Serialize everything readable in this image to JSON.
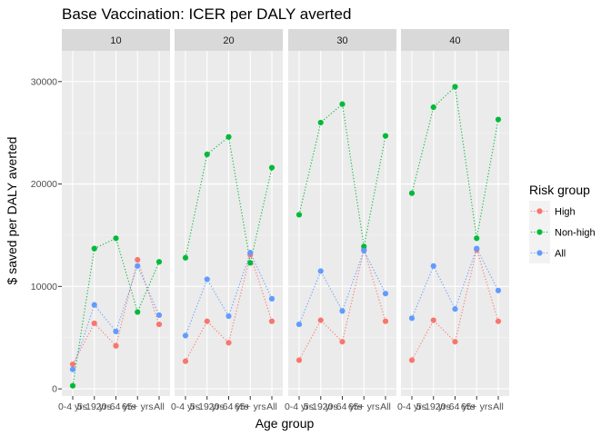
{
  "chart_data": {
    "type": "line",
    "title": "Base Vaccination: ICER per DALY averted",
    "xlabel": "Age group",
    "ylabel": "$ saved per DALY averted",
    "categories": [
      "0-4 yrs",
      "5-19 yrs",
      "20-64 yrs",
      "65+ yrs",
      "All"
    ],
    "yticks": [
      0,
      10000,
      20000,
      30000
    ],
    "ylim": [
      -700,
      33000
    ],
    "grid": true,
    "legend": {
      "title": "Risk group",
      "placement": "right",
      "entries": [
        "High",
        "Non-high",
        "All"
      ]
    },
    "colors": {
      "High": "#F8766D",
      "Non-high": "#00BA38",
      "All": "#619CFF"
    },
    "facets": [
      {
        "label": "10",
        "series": [
          {
            "name": "High",
            "values": [
              2400,
              6400,
              4200,
              12600,
              6300
            ]
          },
          {
            "name": "Non-high",
            "values": [
              300,
              13700,
              14700,
              7500,
              12400
            ]
          },
          {
            "name": "All",
            "values": [
              1900,
              8200,
              5600,
              12000,
              7200
            ]
          }
        ]
      },
      {
        "label": "20",
        "series": [
          {
            "name": "High",
            "values": [
              2700,
              6600,
              4500,
              13100,
              6600
            ]
          },
          {
            "name": "Non-high",
            "values": [
              12800,
              22900,
              24600,
              12300,
              21600
            ]
          },
          {
            "name": "All",
            "values": [
              5200,
              10700,
              7100,
              13300,
              8800
            ]
          }
        ]
      },
      {
        "label": "30",
        "series": [
          {
            "name": "High",
            "values": [
              2800,
              6700,
              4600,
              13600,
              6600
            ]
          },
          {
            "name": "Non-high",
            "values": [
              17000,
              26000,
              27800,
              13900,
              24700
            ]
          },
          {
            "name": "All",
            "values": [
              6300,
              11500,
              7600,
              13500,
              9300
            ]
          }
        ]
      },
      {
        "label": "40",
        "series": [
          {
            "name": "High",
            "values": [
              2800,
              6700,
              4600,
              13600,
              6600
            ]
          },
          {
            "name": "Non-high",
            "values": [
              19100,
              27500,
              29500,
              14700,
              26300
            ]
          },
          {
            "name": "All",
            "values": [
              6900,
              12000,
              7800,
              13700,
              9600
            ]
          }
        ]
      }
    ]
  }
}
